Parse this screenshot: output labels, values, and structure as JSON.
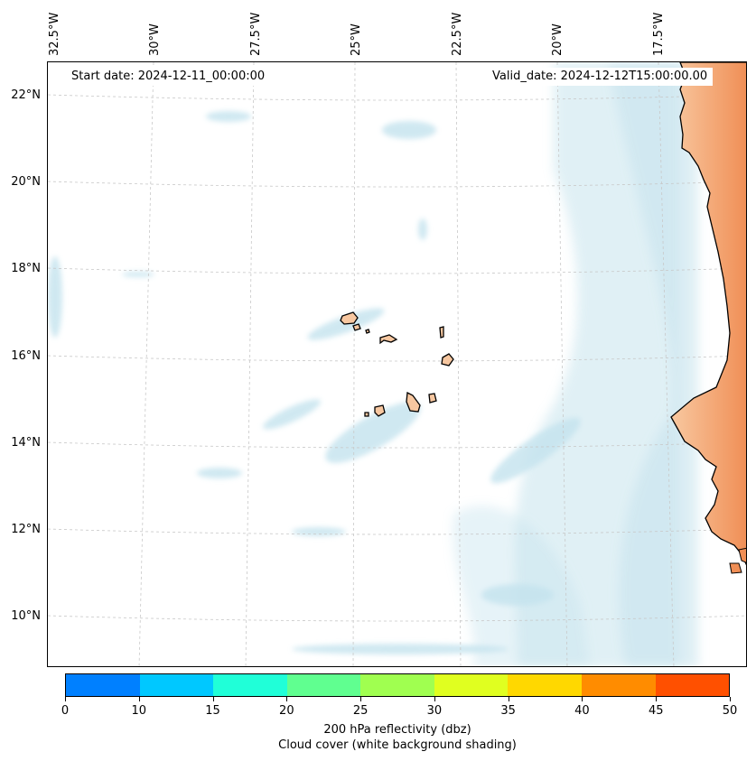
{
  "dates": {
    "start": "Start date: 2024-12-11_00:00:00",
    "valid": "Valid_date: 2024-12-12T15:00:00.00"
  },
  "lon_ticks": [
    "32.5°W",
    "30°W",
    "27.5°W",
    "25°W",
    "22.5°W",
    "20°W",
    "17.5°W"
  ],
  "lat_ticks": [
    "22°N",
    "20°N",
    "18°N",
    "16°N",
    "14°N",
    "12°N",
    "10°N"
  ],
  "colorbar": {
    "ticks": [
      "0",
      "10",
      "15",
      "20",
      "25",
      "30",
      "35",
      "40",
      "45",
      "50"
    ],
    "colors": [
      "#0080ff",
      "#00c8ff",
      "#20ffd8",
      "#60ff90",
      "#a0ff50",
      "#e0ff20",
      "#ffd800",
      "#ff8c00",
      "#ff5000"
    ],
    "label_line1": "200 hPa reflectivity (dbz)",
    "label_line2": "Cloud cover (white background shading)"
  },
  "colors": {
    "land": "#f7b98a",
    "land_inland": "#f19a60",
    "cloud": "#b5dbe8",
    "grid": "#c8c8c8",
    "coast": "#000000"
  }
}
